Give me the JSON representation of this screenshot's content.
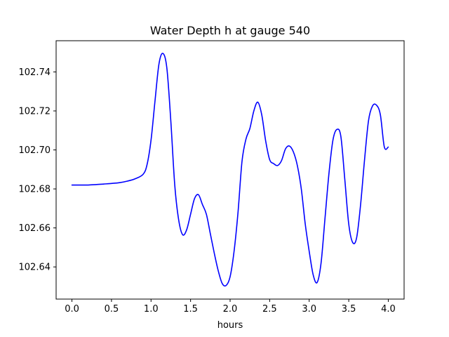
{
  "chart_data": {
    "type": "line",
    "title": "Water Depth h at gauge 540",
    "xlabel": "hours",
    "ylabel": "",
    "xlim": [
      -0.2,
      4.2
    ],
    "ylim": [
      102.6235,
      102.756
    ],
    "xticks": [
      0.0,
      0.5,
      1.0,
      1.5,
      2.0,
      2.5,
      3.0,
      3.5,
      4.0
    ],
    "xtick_labels": [
      "0.0",
      "0.5",
      "1.0",
      "1.5",
      "2.0",
      "2.5",
      "3.0",
      "3.5",
      "4.0"
    ],
    "yticks": [
      102.64,
      102.66,
      102.68,
      102.7,
      102.72,
      102.74
    ],
    "ytick_labels": [
      "102.64",
      "102.66",
      "102.68",
      "102.70",
      "102.72",
      "102.74"
    ],
    "grid": false,
    "series": [
      {
        "color": "#0000ff",
        "x": [
          0.0,
          0.1,
          0.2,
          0.3,
          0.4,
          0.5,
          0.6,
          0.7,
          0.8,
          0.9,
          0.95,
          1.0,
          1.05,
          1.1,
          1.15,
          1.2,
          1.25,
          1.3,
          1.35,
          1.4,
          1.45,
          1.5,
          1.55,
          1.6,
          1.65,
          1.7,
          1.75,
          1.8,
          1.85,
          1.9,
          1.95,
          2.0,
          2.05,
          2.1,
          2.15,
          2.2,
          2.25,
          2.3,
          2.35,
          2.4,
          2.45,
          2.5,
          2.55,
          2.6,
          2.65,
          2.7,
          2.75,
          2.8,
          2.85,
          2.9,
          2.95,
          3.0,
          3.05,
          3.1,
          3.15,
          3.2,
          3.25,
          3.3,
          3.35,
          3.4,
          3.45,
          3.5,
          3.55,
          3.6,
          3.65,
          3.7,
          3.75,
          3.8,
          3.85,
          3.9,
          3.95,
          4.0
        ],
        "y": [
          102.682,
          102.682,
          102.682,
          102.6822,
          102.6825,
          102.6828,
          102.6832,
          102.684,
          102.6852,
          102.6875,
          102.6925,
          102.705,
          102.725,
          102.744,
          102.7495,
          102.742,
          102.715,
          102.682,
          102.664,
          102.6565,
          102.659,
          102.667,
          102.675,
          102.677,
          102.672,
          102.667,
          102.657,
          102.647,
          102.638,
          102.6315,
          102.6305,
          102.635,
          102.648,
          102.668,
          102.694,
          102.7055,
          102.711,
          102.72,
          102.7245,
          102.718,
          102.7045,
          102.695,
          102.693,
          102.692,
          102.6945,
          102.7005,
          102.702,
          102.699,
          102.692,
          102.68,
          102.662,
          102.648,
          102.636,
          102.632,
          102.642,
          102.665,
          102.688,
          102.705,
          102.7105,
          102.707,
          102.685,
          102.662,
          102.6525,
          102.655,
          102.672,
          102.695,
          102.715,
          102.7225,
          102.723,
          102.718,
          102.7015,
          102.7015
        ]
      }
    ]
  }
}
